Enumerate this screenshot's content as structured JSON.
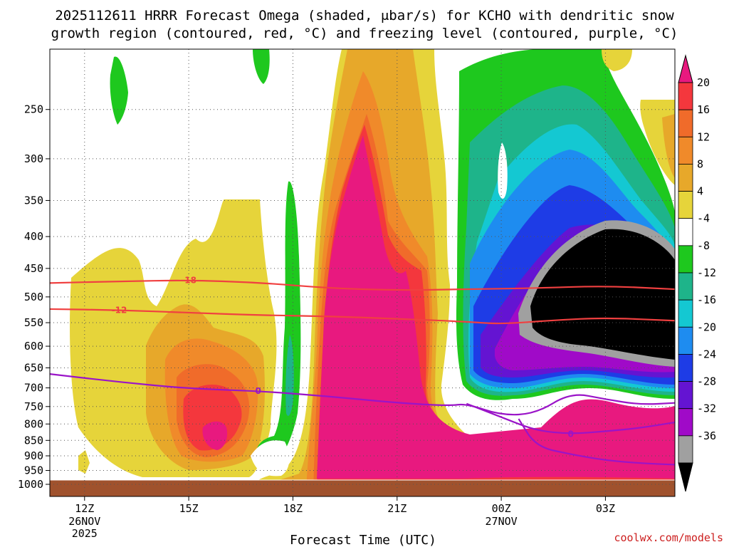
{
  "chart_data": {
    "type": "heatmap",
    "title_line1": "2025112611 HRRR Forecast Omega (shaded, μbar/s) for KCHO with dendritic snow",
    "title_line2": "growth region (contoured, red, °C) and freezing level (contoured, purple, °C)",
    "xlabel": "Forecast Time (UTC)",
    "x_ticks": [
      {
        "hour": 12,
        "label": "12Z",
        "date": "26NOV",
        "year": "2025"
      },
      {
        "hour": 15,
        "label": "15Z",
        "date": "",
        "year": ""
      },
      {
        "hour": 18,
        "label": "18Z",
        "date": "",
        "year": ""
      },
      {
        "hour": 21,
        "label": "21Z",
        "date": "",
        "year": ""
      },
      {
        "hour": 24,
        "label": "00Z",
        "date": "27NOV",
        "year": ""
      },
      {
        "hour": 27,
        "label": "03Z",
        "date": "",
        "year": ""
      }
    ],
    "xlim": [
      11,
      29
    ],
    "y_ticks": [
      "250",
      "300",
      "350",
      "400",
      "450",
      "500",
      "550",
      "600",
      "650",
      "700",
      "750",
      "800",
      "850",
      "900",
      "950",
      "1000"
    ],
    "ylim_hPa": [
      200,
      1000
    ],
    "colorbar": {
      "labels": [
        "20",
        "16",
        "12",
        "8",
        "4",
        "-4",
        "-8",
        "-12",
        "-16",
        "-20",
        "-24",
        "-28",
        "-32",
        "-36"
      ],
      "colors": [
        "#e8197f",
        "#f4373d",
        "#f06b2a",
        "#f08a2a",
        "#e7a82a",
        "#e6d43a",
        "#ffffff",
        "#1ec81e",
        "#1eb48a",
        "#14c8d2",
        "#1e8cf0",
        "#1e3ce6",
        "#6414d2",
        "#a00ac8",
        "#a0a0a0",
        "#000000"
      ]
    },
    "contours": {
      "dendritic": [
        {
          "label": "-18",
          "color": "#f04040",
          "points": [
            [
              11,
              475
            ],
            [
              13,
              472
            ],
            [
              15,
              470
            ],
            [
              17,
              474
            ],
            [
              19,
              484
            ],
            [
              21,
              488
            ],
            [
              23,
              486
            ],
            [
              25,
              484
            ],
            [
              27,
              480
            ],
            [
              29,
              486
            ]
          ]
        },
        {
          "label": "-12",
          "color": "#f04040",
          "points": [
            [
              11,
              523
            ],
            [
              13,
              525
            ],
            [
              15,
              530
            ],
            [
              17,
              535
            ],
            [
              19,
              537
            ],
            [
              21,
              542
            ],
            [
              23,
              548
            ],
            [
              24,
              553
            ],
            [
              25.5,
              545
            ],
            [
              27,
              540
            ],
            [
              29,
              546
            ]
          ]
        }
      ],
      "freezing": [
        {
          "label": "0",
          "color": "#9a14c8",
          "points": [
            [
              11,
              665
            ],
            [
              13,
              685
            ],
            [
              15,
              702
            ],
            [
              17,
              708
            ],
            [
              19,
              722
            ],
            [
              21,
              740
            ],
            [
              22.5,
              748
            ],
            [
              23,
              742
            ],
            [
              24,
              775
            ],
            [
              25,
              770
            ],
            [
              26,
              712
            ],
            [
              27,
              730
            ],
            [
              28,
              745
            ],
            [
              29,
              740
            ]
          ]
        },
        {
          "label": "0",
          "color": "#9a14c8",
          "points": [
            [
              23,
              742
            ],
            [
              24,
              780
            ],
            [
              25,
              820
            ],
            [
              26,
              830
            ],
            [
              27,
              822
            ],
            [
              28,
              812
            ],
            [
              29,
              795
            ]
          ]
        },
        {
          "label": "",
          "color": "#9a14c8",
          "points": [
            [
              24.5,
              785
            ],
            [
              25,
              870
            ],
            [
              26,
              895
            ],
            [
              27,
              915
            ],
            [
              28,
              925
            ],
            [
              29,
              930
            ]
          ]
        }
      ]
    },
    "surface_color": "#a0522d"
  },
  "credit": "coolwx.com/models"
}
